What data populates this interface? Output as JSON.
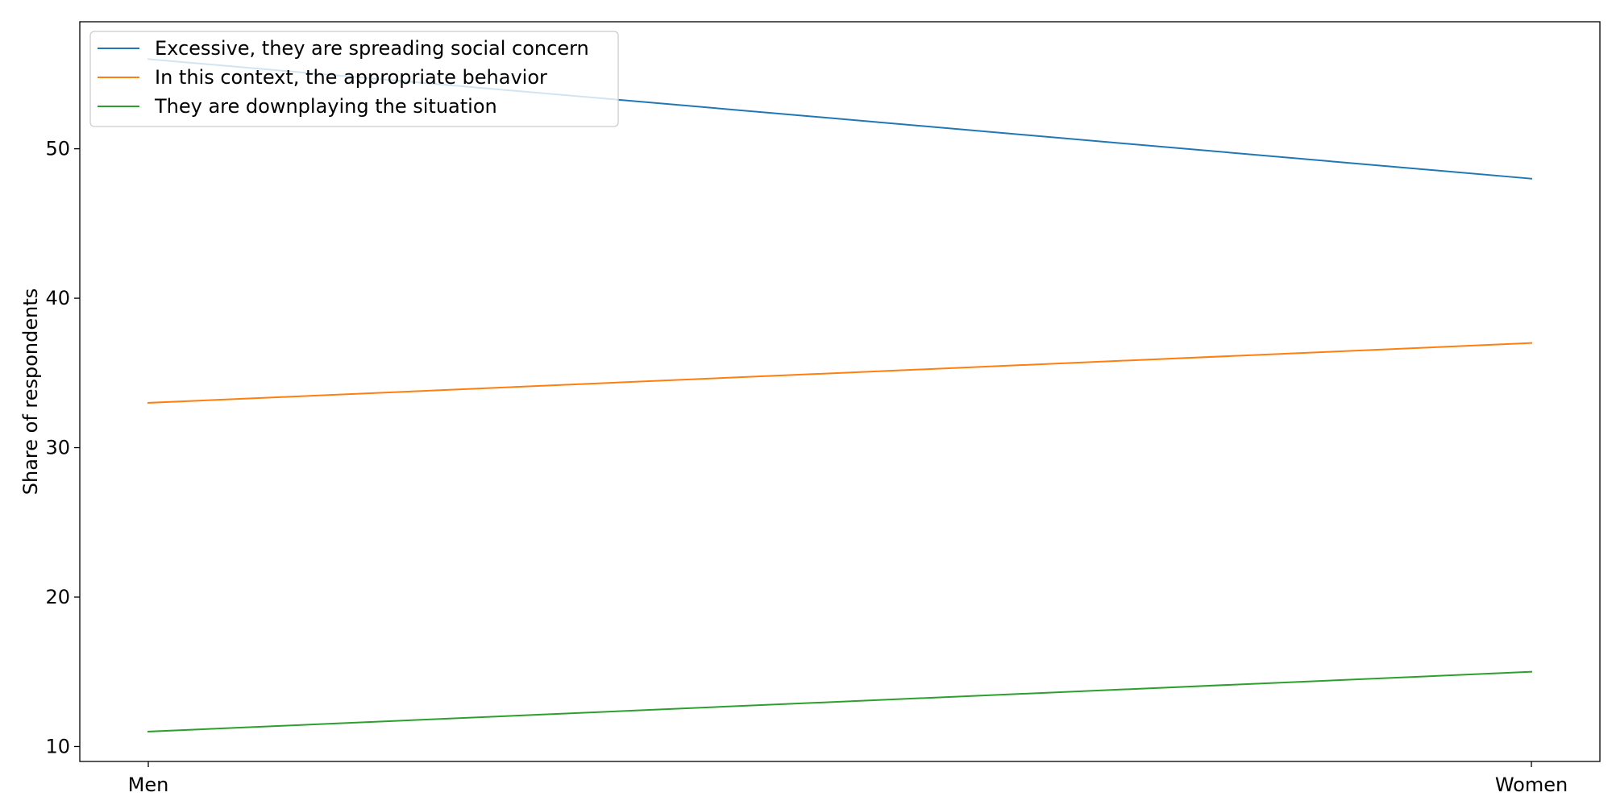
{
  "chart_data": {
    "type": "line",
    "title": "",
    "xlabel": "",
    "ylabel": "Share of respondents",
    "categories": [
      "Men",
      "Women"
    ],
    "ylim": [
      9,
      58.5
    ],
    "yticks": [
      10,
      20,
      30,
      40,
      50
    ],
    "grid": false,
    "legend_position": "top-left",
    "series": [
      {
        "name": "Excessive, they are spreading social concern",
        "values": [
          56,
          48
        ],
        "color": "#1f77b4"
      },
      {
        "name": "In this context, the appropriate behavior",
        "values": [
          33,
          37
        ],
        "color": "#ff7f0e"
      },
      {
        "name": "They are downplaying the situation",
        "values": [
          11,
          15
        ],
        "color": "#2ca02c"
      }
    ]
  }
}
